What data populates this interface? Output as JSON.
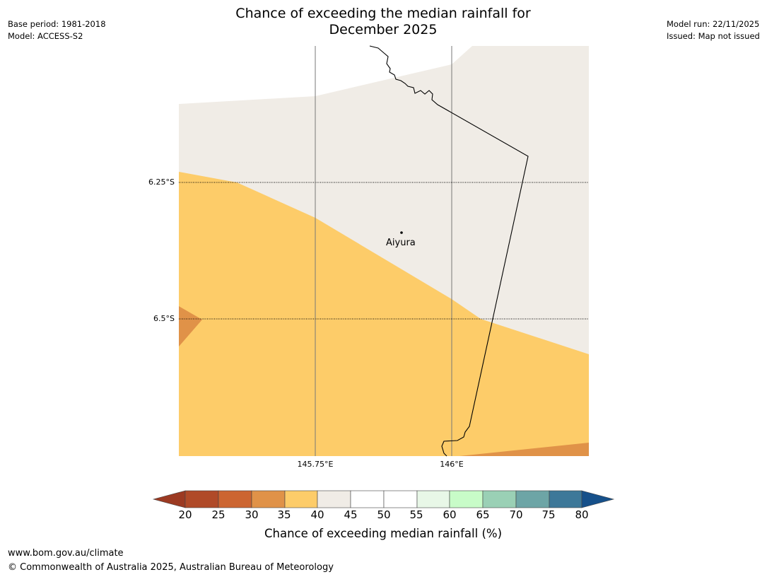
{
  "title": {
    "line1": "Chance of exceeding the median rainfall for",
    "line2": "December 2025"
  },
  "meta_left": {
    "base_period": "Base period: 1981-2018",
    "model": "Model: ACCESS-S2"
  },
  "meta_right": {
    "model_run": "Model run: 22/11/2025",
    "issued": "Issued: Map not issued"
  },
  "map": {
    "latitude_labels": [
      "6.25°S",
      "6.5°S"
    ],
    "longitude_labels": [
      "145.75°E",
      "146°E"
    ],
    "town": {
      "name": "Aiyura"
    },
    "legend_colors": {
      "bin_20_25": "#b04a28",
      "bin_25_30": "#cc6531",
      "bin_30_35": "#e09248",
      "bin_35_40": "#fdcc69",
      "bin_40_45": "#f0ece6",
      "bin_45_55": "#ffffff",
      "bin_55_60": "#e8f7e7",
      "bin_60_65": "#c8fcc8",
      "bin_65_70": "#9ad0b5",
      "bin_70_75": "#6da5a6",
      "bin_75_80": "#3d7899",
      "below_20": "#9c3a22",
      "above_80": "#16508a"
    }
  },
  "colorbar": {
    "ticks": [
      "20",
      "25",
      "30",
      "35",
      "40",
      "45",
      "50",
      "55",
      "60",
      "65",
      "70",
      "75",
      "80"
    ],
    "label": "Chance of exceeding median rainfall (%)"
  },
  "footer": {
    "url": "www.bom.gov.au/climate",
    "copyright": "© Commonwealth of Australia 2025, Australian Bureau of Meteorology"
  }
}
